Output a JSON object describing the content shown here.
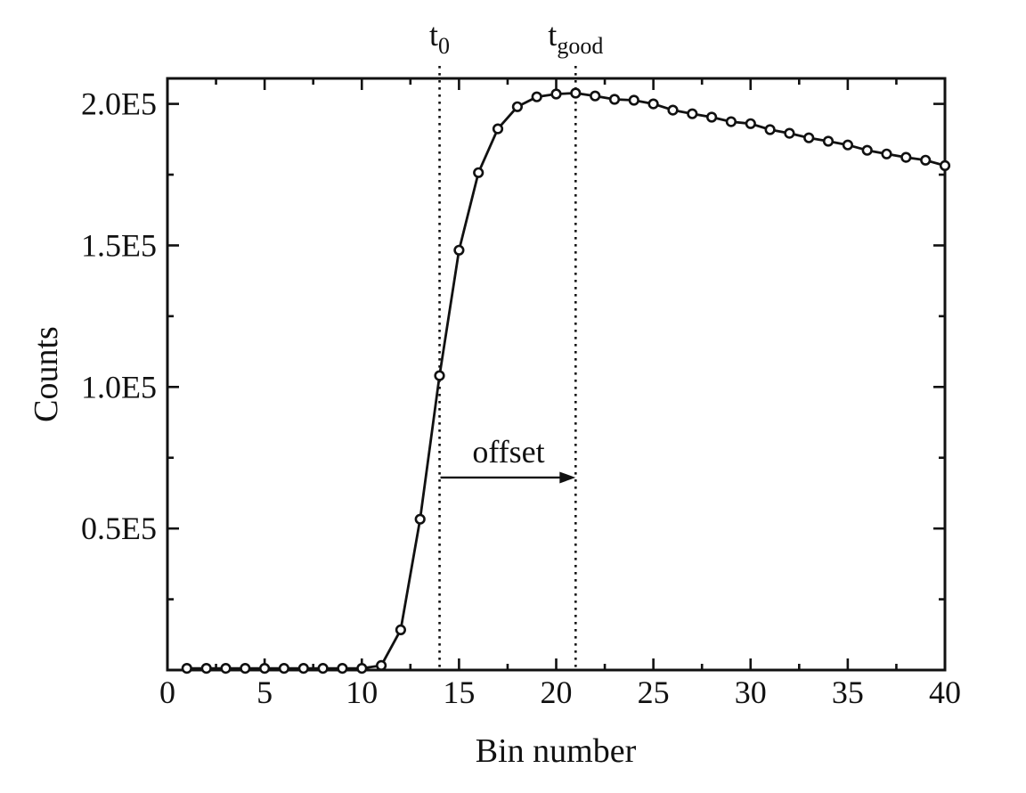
{
  "figure": {
    "background": "#ffffff",
    "ink": "#111111"
  },
  "chart_data": {
    "type": "line",
    "title": "",
    "xlabel": "Bin number",
    "ylabel": "Counts",
    "grid": false,
    "legend_position": "none",
    "marker": "open-circle",
    "xlim": [
      0,
      40
    ],
    "ylim": [
      0,
      209000
    ],
    "x": [
      1,
      2,
      3,
      4,
      5,
      6,
      7,
      8,
      9,
      10,
      11,
      12,
      13,
      14,
      15,
      16,
      17,
      18,
      19,
      20,
      21,
      22,
      23,
      24,
      25,
      26,
      27,
      28,
      29,
      30,
      31,
      32,
      33,
      34,
      35,
      36,
      37,
      38,
      39,
      40
    ],
    "values": [
      600,
      600,
      600,
      600,
      600,
      600,
      600,
      600,
      600,
      600,
      1600,
      14200,
      53300,
      104000,
      148300,
      175700,
      191200,
      199000,
      202500,
      203500,
      203800,
      202800,
      201600,
      201300,
      200000,
      197800,
      196500,
      195300,
      193700,
      193000,
      190900,
      189600,
      188000,
      186800,
      185500,
      183600,
      182300,
      181100,
      180100,
      178200
    ],
    "x_ticks": [
      {
        "v": 0,
        "label": "0"
      },
      {
        "v": 5,
        "label": "5"
      },
      {
        "v": 10,
        "label": "10"
      },
      {
        "v": 15,
        "label": "15"
      },
      {
        "v": 20,
        "label": "20"
      },
      {
        "v": 25,
        "label": "25"
      },
      {
        "v": 30,
        "label": "30"
      },
      {
        "v": 35,
        "label": "35"
      },
      {
        "v": 40,
        "label": "40"
      }
    ],
    "x_minor_ticks": [
      2.5,
      7.5,
      12.5,
      17.5,
      22.5,
      27.5,
      32.5,
      37.5
    ],
    "y_ticks": [
      {
        "v": 50000,
        "label": "0.5E5"
      },
      {
        "v": 100000,
        "label": "1.0E5"
      },
      {
        "v": 150000,
        "label": "1.5E5"
      },
      {
        "v": 200000,
        "label": "2.0E5"
      }
    ],
    "y_minor_ticks": [
      25000,
      75000,
      125000,
      175000
    ],
    "annotations": {
      "vlines": [
        {
          "name": "t0",
          "x": 14,
          "label_main": "t",
          "label_sub": "0"
        },
        {
          "name": "tgood",
          "x": 21,
          "label_main": "t",
          "label_sub": "good"
        }
      ],
      "arrow": {
        "x1": 14,
        "x2": 21,
        "y": 68000,
        "label": "offset"
      }
    }
  }
}
